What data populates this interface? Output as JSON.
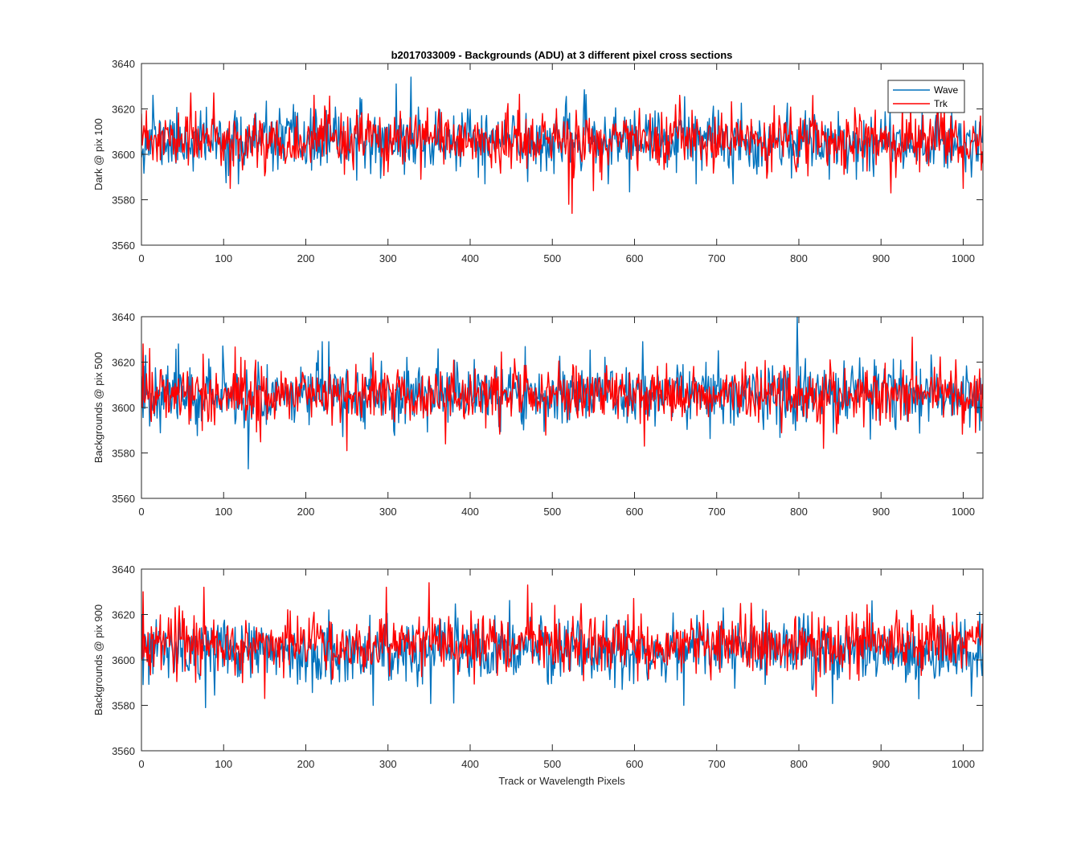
{
  "chart_data": {
    "type": "line",
    "title": "b2017033009 - Backgrounds (ADU) at 3 different pixel cross sections",
    "xlabel": "Track or Wavelength Pixels",
    "xlim": [
      0,
      1024
    ],
    "ylim": [
      3560,
      3640
    ],
    "xticks": [
      0,
      100,
      200,
      300,
      400,
      500,
      600,
      700,
      800,
      900,
      1000
    ],
    "yticks": [
      3560,
      3580,
      3600,
      3620,
      3640
    ],
    "grid": false,
    "legend": {
      "placement": "top-right",
      "entries": [
        "Wave",
        "Trk"
      ]
    },
    "series_colors": {
      "Wave": "#0072BD",
      "Trk": "#FF0000"
    },
    "subplots": [
      {
        "ylabel": "Dark @ pix 100",
        "series": [
          {
            "name": "Wave",
            "noise_mean": 3606,
            "noise_sd": 6.5,
            "seed": 11,
            "spikes": [
              [
                14,
                3626
              ],
              [
                118,
                3587
              ],
              [
                310,
                3631
              ],
              [
                328,
                3634
              ],
              [
                418,
                3587
              ],
              [
                470,
                3588
              ],
              [
                568,
                3587
              ],
              [
                675,
                3587
              ],
              [
                720,
                3587
              ],
              [
                870,
                3589
              ],
              [
                1010,
                3590
              ],
              [
                1018,
                3597
              ]
            ]
          },
          {
            "name": "Trk",
            "noise_mean": 3606,
            "noise_sd": 6.0,
            "seed": 23,
            "spikes": [
              [
                60,
                3627
              ],
              [
                88,
                3627
              ],
              [
                108,
                3585
              ],
              [
                210,
                3626
              ],
              [
                340,
                3589
              ],
              [
                520,
                3578
              ],
              [
                524,
                3574
              ],
              [
                550,
                3584
              ],
              [
                655,
                3626
              ],
              [
                912,
                3583
              ],
              [
                1000,
                3585
              ],
              [
                1022,
                3593
              ]
            ]
          }
        ]
      },
      {
        "ylabel": "Backgrounds @ pix 500",
        "series": [
          {
            "name": "Wave",
            "noise_mean": 3606,
            "noise_sd": 6.8,
            "seed": 37,
            "spikes": [
              [
                5,
                3623
              ],
              [
                45,
                3628
              ],
              [
                130,
                3573
              ],
              [
                220,
                3629
              ],
              [
                228,
                3629
              ],
              [
                610,
                3629
              ],
              [
                702,
                3625
              ],
              [
                798,
                3640
              ],
              [
                802,
                3618
              ],
              [
                1020,
                3590
              ]
            ]
          },
          {
            "name": "Trk",
            "noise_mean": 3606,
            "noise_sd": 6.3,
            "seed": 41,
            "spikes": [
              [
                2,
                3628
              ],
              [
                10,
                3626
              ],
              [
                250,
                3581
              ],
              [
                370,
                3584
              ],
              [
                612,
                3583
              ],
              [
                830,
                3582
              ],
              [
                838,
                3621
              ],
              [
                938,
                3631
              ],
              [
                1015,
                3589
              ]
            ]
          }
        ]
      },
      {
        "ylabel": "Backgrounds @ pix 900",
        "series": [
          {
            "name": "Wave",
            "noise_mean": 3604,
            "noise_sd": 6.8,
            "seed": 53,
            "spikes": [
              [
                78,
                3579
              ],
              [
                282,
                3580
              ],
              [
                380,
                3581
              ],
              [
                585,
                3587
              ],
              [
                660,
                3580
              ],
              [
                1010,
                3584
              ],
              [
                1020,
                3621
              ]
            ]
          },
          {
            "name": "Trk",
            "noise_mean": 3607,
            "noise_sd": 6.3,
            "seed": 67,
            "spikes": [
              [
                2,
                3630
              ],
              [
                76,
                3632
              ],
              [
                150,
                3583
              ],
              [
                210,
                3621
              ],
              [
                350,
                3634
              ],
              [
                470,
                3633
              ],
              [
                475,
                3625
              ],
              [
                742,
                3625
              ],
              [
                1018,
                3617
              ]
            ]
          }
        ]
      }
    ]
  }
}
